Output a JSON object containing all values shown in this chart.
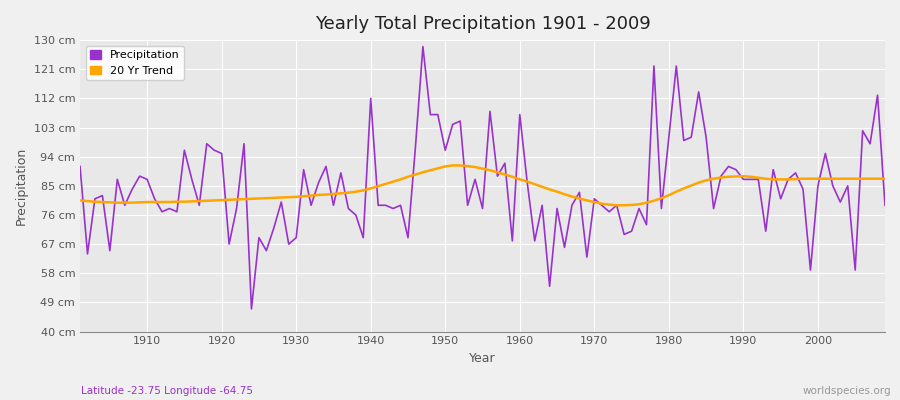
{
  "title": "Yearly Total Precipitation 1901 - 2009",
  "xlabel": "Year",
  "ylabel": "Precipitation",
  "subtitle": "Latitude -23.75 Longitude -64.75",
  "watermark": "worldspecies.org",
  "precip_color": "#9932CC",
  "trend_color": "#FFA500",
  "fig_bg_color": "#f0f0f0",
  "plot_bg_color": "#e8e8e8",
  "legend_labels": [
    "Precipitation",
    "20 Yr Trend"
  ],
  "ylim": [
    40,
    130
  ],
  "yticks": [
    40,
    49,
    58,
    67,
    76,
    85,
    94,
    103,
    112,
    121,
    130
  ],
  "ytick_labels": [
    "40 cm",
    "49 cm",
    "58 cm",
    "67 cm",
    "76 cm",
    "85 cm",
    "94 cm",
    "103 cm",
    "112 cm",
    "121 cm",
    "130 cm"
  ],
  "xlim": [
    1901,
    2009
  ],
  "xticks": [
    1910,
    1920,
    1930,
    1940,
    1950,
    1960,
    1970,
    1980,
    1990,
    2000
  ],
  "years": [
    1901,
    1902,
    1903,
    1904,
    1905,
    1906,
    1907,
    1908,
    1909,
    1910,
    1911,
    1912,
    1913,
    1914,
    1915,
    1916,
    1917,
    1918,
    1919,
    1920,
    1921,
    1922,
    1923,
    1924,
    1925,
    1926,
    1927,
    1928,
    1929,
    1930,
    1931,
    1932,
    1933,
    1934,
    1935,
    1936,
    1937,
    1938,
    1939,
    1940,
    1941,
    1942,
    1943,
    1944,
    1945,
    1946,
    1947,
    1948,
    1949,
    1950,
    1951,
    1952,
    1953,
    1954,
    1955,
    1956,
    1957,
    1958,
    1959,
    1960,
    1961,
    1962,
    1963,
    1964,
    1965,
    1966,
    1967,
    1968,
    1969,
    1970,
    1971,
    1972,
    1973,
    1974,
    1975,
    1976,
    1977,
    1978,
    1979,
    1980,
    1981,
    1982,
    1983,
    1984,
    1985,
    1986,
    1987,
    1988,
    1989,
    1990,
    1991,
    1992,
    1993,
    1994,
    1995,
    1996,
    1997,
    1998,
    1999,
    2000,
    2001,
    2002,
    2003,
    2004,
    2005,
    2006,
    2007,
    2008,
    2009
  ],
  "precipitation": [
    91,
    64,
    81,
    82,
    65,
    87,
    79,
    84,
    88,
    87,
    81,
    77,
    78,
    77,
    96,
    87,
    79,
    98,
    96,
    95,
    67,
    78,
    98,
    47,
    69,
    65,
    72,
    80,
    67,
    69,
    90,
    79,
    86,
    91,
    79,
    89,
    78,
    76,
    69,
    112,
    79,
    79,
    78,
    79,
    69,
    97,
    128,
    107,
    107,
    96,
    104,
    105,
    79,
    87,
    78,
    108,
    88,
    92,
    68,
    107,
    86,
    68,
    79,
    54,
    78,
    66,
    79,
    83,
    63,
    81,
    79,
    77,
    79,
    70,
    71,
    78,
    73,
    122,
    78,
    100,
    122,
    99,
    100,
    114,
    100,
    78,
    88,
    91,
    90,
    87,
    87,
    87,
    71,
    90,
    81,
    87,
    89,
    84,
    59,
    85,
    95,
    85,
    80,
    85,
    59,
    102,
    98,
    113,
    79
  ],
  "trend": [
    80.5,
    80.3,
    80.1,
    80.0,
    79.9,
    79.8,
    79.8,
    79.8,
    79.9,
    80.0,
    80.0,
    80.0,
    80.0,
    80.1,
    80.1,
    80.2,
    80.3,
    80.4,
    80.5,
    80.6,
    80.7,
    80.8,
    80.9,
    81.0,
    81.1,
    81.2,
    81.3,
    81.4,
    81.5,
    81.6,
    81.8,
    82.0,
    82.2,
    82.3,
    82.5,
    82.7,
    82.9,
    83.2,
    83.6,
    84.2,
    84.9,
    85.6,
    86.3,
    87.0,
    87.8,
    88.5,
    89.2,
    89.8,
    90.4,
    91.0,
    91.3,
    91.3,
    91.1,
    90.8,
    90.3,
    89.8,
    89.2,
    88.5,
    87.8,
    87.0,
    86.3,
    85.5,
    84.7,
    83.9,
    83.2,
    82.4,
    81.7,
    81.1,
    80.5,
    80.0,
    79.5,
    79.2,
    79.0,
    79.0,
    79.1,
    79.3,
    79.8,
    80.4,
    81.2,
    82.1,
    83.2,
    84.2,
    85.1,
    86.0,
    86.7,
    87.2,
    87.6,
    87.8,
    87.9,
    88.0,
    87.8,
    87.5,
    87.2,
    87.0,
    87.0,
    87.0,
    87.1,
    87.2,
    87.2,
    87.2,
    87.2,
    87.2,
    87.2,
    87.2,
    87.2,
    87.2,
    87.2,
    87.2,
    87.2
  ]
}
